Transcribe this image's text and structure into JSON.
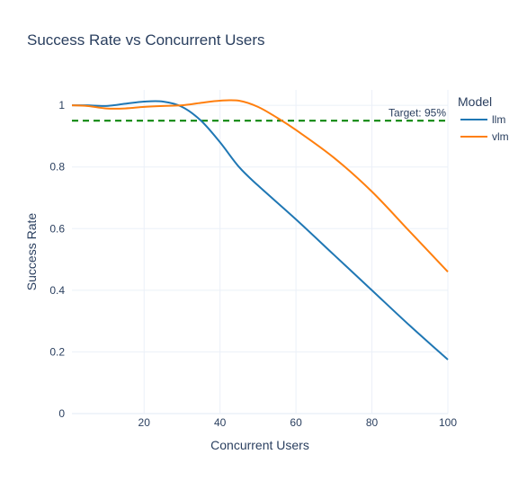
{
  "chart_data": {
    "type": "line",
    "title": "Success Rate vs Concurrent Users",
    "xlabel": "Concurrent Users",
    "ylabel": "Success Rate",
    "xlim": [
      1,
      100
    ],
    "ylim": [
      0,
      1.05
    ],
    "x_ticks": [
      20,
      40,
      60,
      80,
      100
    ],
    "y_ticks": [
      0,
      0.2,
      0.4,
      0.6,
      0.8,
      1
    ],
    "x_tick_labels": [
      "20",
      "40",
      "60",
      "80",
      "100"
    ],
    "y_tick_labels": [
      "0",
      "0.2",
      "0.4",
      "0.6",
      "0.8",
      "1"
    ],
    "grid": true,
    "legend": {
      "title": "Model",
      "placement": "right"
    },
    "series": [
      {
        "name": "llm",
        "color": "#1f77b4",
        "x": [
          1,
          5,
          10,
          15,
          20,
          25,
          30,
          35,
          40,
          45,
          50,
          60,
          70,
          80,
          90,
          100
        ],
        "y": [
          1.0,
          1.0,
          0.998,
          1.005,
          1.012,
          1.012,
          0.995,
          0.95,
          0.88,
          0.8,
          0.74,
          0.63,
          0.515,
          0.4,
          0.285,
          0.175
        ]
      },
      {
        "name": "vlm",
        "color": "#ff7f0e",
        "x": [
          1,
          5,
          10,
          15,
          20,
          25,
          30,
          35,
          40,
          45,
          50,
          55,
          60,
          70,
          80,
          90,
          100
        ],
        "y": [
          1.0,
          0.998,
          0.99,
          0.99,
          0.995,
          0.998,
          1.0,
          1.008,
          1.015,
          1.015,
          0.995,
          0.96,
          0.92,
          0.83,
          0.72,
          0.59,
          0.46
        ]
      }
    ],
    "annotations": [
      {
        "type": "hline",
        "y": 0.95,
        "color": "#008000",
        "dash": "dashed",
        "label": "Target: 95%"
      }
    ]
  }
}
